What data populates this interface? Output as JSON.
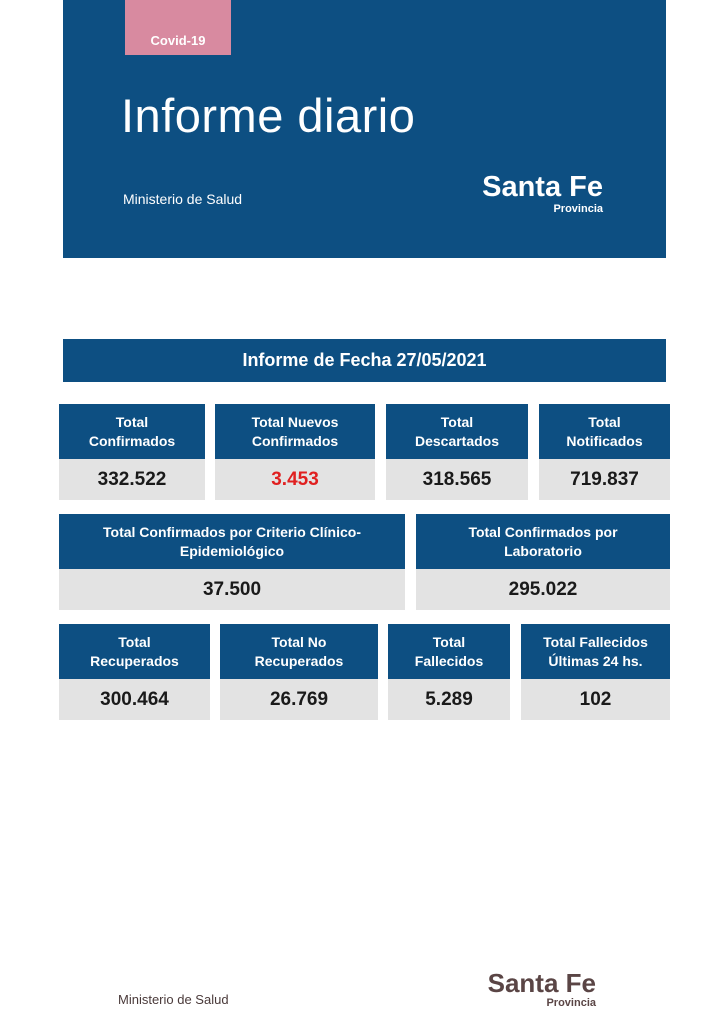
{
  "header": {
    "tag": "Covid-19",
    "title": "Informe diario",
    "ministry": "Ministerio de Salud",
    "logo_name": "Santa Fe",
    "logo_sub": "Provincia"
  },
  "report": {
    "title": "Informe de Fecha 27/05/2021"
  },
  "row1": [
    {
      "label_1": "Total",
      "label_2": "Confirmados",
      "value": "332.522"
    },
    {
      "label_1": "Total Nuevos",
      "label_2": "Confirmados",
      "value": "3.453"
    },
    {
      "label_1": "Total",
      "label_2": "Descartados",
      "value": "318.565"
    },
    {
      "label_1": "Total",
      "label_2": "Notificados",
      "value": "719.837"
    }
  ],
  "row2": [
    {
      "label_1": "Total Confirmados por Criterio Clínico-",
      "label_2": "Epidemiológico",
      "value": "37.500"
    },
    {
      "label_1": "Total Confirmados por",
      "label_2": "Laboratorio",
      "value": "295.022"
    }
  ],
  "row3": [
    {
      "label_1": "Total",
      "label_2": "Recuperados",
      "value": "300.464"
    },
    {
      "label_1": "Total No",
      "label_2": "Recuperados",
      "value": "26.769"
    },
    {
      "label_1": "Total",
      "label_2": "Fallecidos",
      "value": "5.289"
    },
    {
      "label_1": "Total Fallecidos",
      "label_2": "Últimas 24 hs.",
      "value": "102"
    }
  ],
  "footer": {
    "ministry": "Ministerio de Salud",
    "logo_name": "Santa Fe",
    "logo_sub": "Provincia"
  },
  "colors": {
    "brand_blue": "#0d4f82",
    "tag_pink": "#d88aa0",
    "value_bg": "#e3e3e3",
    "highlight_red": "#e02020"
  }
}
